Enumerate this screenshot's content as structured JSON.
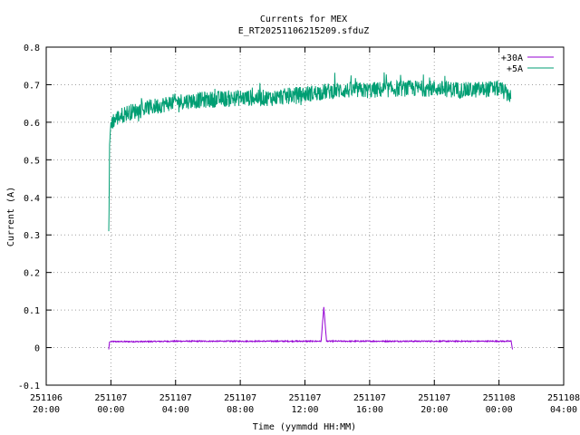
{
  "chart_data": {
    "type": "line",
    "title": "Currents for MEX",
    "subtitle": "E_RT20251106215209.sfduZ",
    "xlabel": "Time (yymmdd HH:MM)",
    "ylabel": "Current (A)",
    "xlim": [
      "2025-11-06 20:00",
      "2025-11-08 04:00"
    ],
    "ylim": [
      -0.1,
      0.8
    ],
    "grid": true,
    "legend_position": "top-right",
    "x_ticks": [
      {
        "date": "251106",
        "time": "20:00"
      },
      {
        "date": "251107",
        "time": "00:00"
      },
      {
        "date": "251107",
        "time": "04:00"
      },
      {
        "date": "251107",
        "time": "08:00"
      },
      {
        "date": "251107",
        "time": "12:00"
      },
      {
        "date": "251107",
        "time": "16:00"
      },
      {
        "date": "251107",
        "time": "20:00"
      },
      {
        "date": "251108",
        "time": "00:00"
      },
      {
        "date": "251108",
        "time": "04:00"
      }
    ],
    "y_ticks": [
      -0.1,
      0,
      0.1,
      0.2,
      0.3,
      0.4,
      0.5,
      0.6,
      0.7,
      0.8
    ],
    "series": [
      {
        "name": "+30A",
        "color": "#9400d3",
        "x": [
          "2025-11-06 23:52",
          "2025-11-06 23:55",
          "2025-11-07 00:00",
          "2025-11-07 02:00",
          "2025-11-07 04:00",
          "2025-11-07 06:00",
          "2025-11-07 08:00",
          "2025-11-07 10:00",
          "2025-11-07 12:00",
          "2025-11-07 13:00",
          "2025-11-07 13:10",
          "2025-11-07 13:20",
          "2025-11-07 14:00",
          "2025-11-07 16:00",
          "2025-11-07 18:00",
          "2025-11-07 20:00",
          "2025-11-07 22:00",
          "2025-11-08 00:00",
          "2025-11-08 00:45",
          "2025-11-08 00:50"
        ],
        "y": [
          -0.005,
          0.015,
          0.016,
          0.016,
          0.017,
          0.017,
          0.017,
          0.017,
          0.017,
          0.017,
          0.108,
          0.017,
          0.017,
          0.017,
          0.017,
          0.017,
          0.017,
          0.017,
          0.017,
          -0.005
        ]
      },
      {
        "name": "+5A",
        "color": "#009e73",
        "x": [
          "2025-11-06 23:52",
          "2025-11-06 23:53",
          "2025-11-06 23:55",
          "2025-11-07 00:00",
          "2025-11-07 00:30",
          "2025-11-07 01:00",
          "2025-11-07 02:00",
          "2025-11-07 03:00",
          "2025-11-07 04:00",
          "2025-11-07 06:00",
          "2025-11-07 08:00",
          "2025-11-07 10:00",
          "2025-11-07 12:00",
          "2025-11-07 14:00",
          "2025-11-07 16:00",
          "2025-11-07 18:00",
          "2025-11-07 20:00",
          "2025-11-07 22:00",
          "2025-11-08 00:00",
          "2025-11-08 00:45"
        ],
        "y": [
          0.31,
          0.36,
          0.54,
          0.6,
          0.615,
          0.625,
          0.635,
          0.645,
          0.655,
          0.66,
          0.665,
          0.665,
          0.675,
          0.685,
          0.685,
          0.69,
          0.69,
          0.685,
          0.69,
          0.67
        ]
      }
    ]
  }
}
